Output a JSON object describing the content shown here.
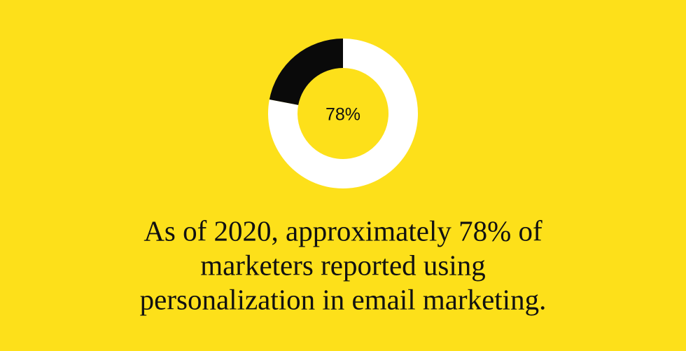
{
  "chart_data": {
    "type": "donut",
    "categories": [
      null,
      null
    ],
    "values": [
      78,
      22
    ],
    "value_labels": [
      "78%",
      null
    ],
    "colors": [
      "#ffffff",
      "#0a0a0a"
    ],
    "caption": [
      "As of 2020, approximately 78% of",
      "marketers reported using",
      "personalization in email marketing."
    ]
  }
}
